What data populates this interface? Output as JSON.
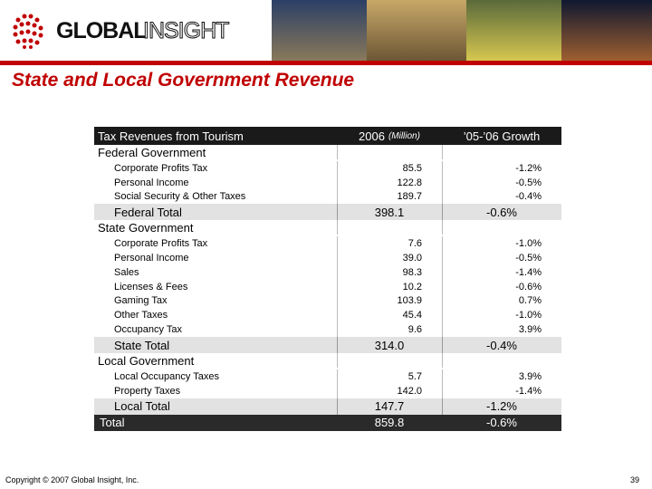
{
  "logo": {
    "part1": "GLOBAL",
    "part2": "INSIGHT"
  },
  "title": "State and Local Government Revenue",
  "table": {
    "header": [
      "Tax Revenues from Tourism",
      "2006",
      "(Million)",
      "’05-’06 Growth"
    ],
    "sections": [
      {
        "name": "Federal Government",
        "rows": [
          [
            "Corporate Profits Tax",
            "85.5",
            "-1.2%"
          ],
          [
            "Personal Income",
            "122.8",
            "-0.5%"
          ],
          [
            "Social Security & Other Taxes",
            "189.7",
            "-0.4%"
          ]
        ],
        "total": [
          "Federal Total",
          "398.1",
          "-0.6%"
        ]
      },
      {
        "name": "State Government",
        "rows": [
          [
            "Corporate Profits Tax",
            "7.6",
            "-1.0%"
          ],
          [
            "Personal Income",
            "39.0",
            "-0.5%"
          ],
          [
            "Sales",
            "98.3",
            "-1.4%"
          ],
          [
            "Licenses & Fees",
            "10.2",
            "-0.6%"
          ],
          [
            "Gaming Tax",
            "103.9",
            "0.7%"
          ],
          [
            "Other Taxes",
            "45.4",
            "-1.0%"
          ],
          [
            "Occupancy Tax",
            "9.6",
            "3.9%"
          ]
        ],
        "total": [
          "State Total",
          "314.0",
          "-0.4%"
        ]
      },
      {
        "name": "Local Government",
        "rows": [
          [
            "Local Occupancy Taxes",
            "5.7",
            "3.9%"
          ],
          [
            "Property Taxes",
            "142.0",
            "-1.4%"
          ]
        ],
        "total": [
          "Local Total",
          "147.7",
          "-1.2%"
        ]
      }
    ],
    "grand_total": [
      "Total",
      "859.8",
      "-0.6%"
    ]
  },
  "footer": {
    "copyright": "Copyright © 2007 Global Insight, Inc.",
    "page": "39"
  }
}
